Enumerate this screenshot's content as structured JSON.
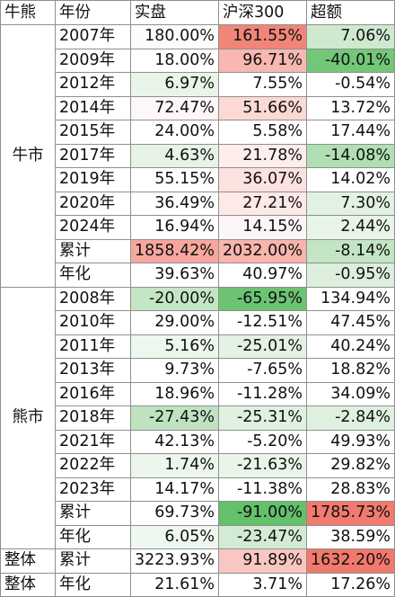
{
  "headers": [
    "牛熊",
    "年份",
    "实盘",
    "沪深300",
    "超额"
  ],
  "groups": [
    {
      "name": "牛市",
      "rows": [
        {
          "year": "2007年",
          "shipan": "180.00%",
          "hs300": "161.55%",
          "excess": "7.06%",
          "colors": [
            "#fbfdfb",
            "#f08578",
            "#cfe9cf"
          ]
        },
        {
          "year": "2009年",
          "shipan": "18.00%",
          "hs300": "96.71%",
          "excess": "-40.01%",
          "colors": [
            "#ffffff",
            "#f8b7b0",
            "#72c778"
          ]
        },
        {
          "year": "2012年",
          "shipan": "6.97%",
          "hs300": "7.55%",
          "excess": "-0.54%",
          "colors": [
            "#eaf5ea",
            "#ffffff",
            "#ffffff"
          ]
        },
        {
          "year": "2014年",
          "shipan": "72.47%",
          "hs300": "51.66%",
          "excess": "13.72%",
          "colors": [
            "#fdf7f7",
            "#fcd9d5",
            "#ffffff"
          ]
        },
        {
          "year": "2015年",
          "shipan": "24.00%",
          "hs300": "5.58%",
          "excess": "17.44%",
          "colors": [
            "#ffffff",
            "#ffffff",
            "#ffffff"
          ]
        },
        {
          "year": "2017年",
          "shipan": "4.63%",
          "hs300": "21.78%",
          "excess": "-14.08%",
          "colors": [
            "#e6f3e6",
            "#fdeeec",
            "#b1dfb3"
          ]
        },
        {
          "year": "2019年",
          "shipan": "55.15%",
          "hs300": "36.07%",
          "excess": "14.02%",
          "colors": [
            "#ffffff",
            "#fce1de",
            "#ffffff"
          ]
        },
        {
          "year": "2020年",
          "shipan": "36.49%",
          "hs300": "27.21%",
          "excess": "7.30%",
          "colors": [
            "#ffffff",
            "#fde9e7",
            "#e2f2e2"
          ]
        },
        {
          "year": "2024年",
          "shipan": "16.94%",
          "hs300": "14.15%",
          "excess": "2.44%",
          "colors": [
            "#ffffff",
            "#fdf6f6",
            "#e8f4e8"
          ]
        },
        {
          "year": "累计",
          "shipan": "1858.42%",
          "hs300": "2032.00%",
          "excess": "-8.14%",
          "colors": [
            "#f7a79e",
            "#f8b4ad",
            "#c3e5c4"
          ]
        },
        {
          "year": "年化",
          "shipan": "39.63%",
          "hs300": "40.97%",
          "excess": "-0.95%",
          "colors": [
            "#ffffff",
            "#ffffff",
            "#dcefdc"
          ]
        }
      ]
    },
    {
      "name": "熊市",
      "rows": [
        {
          "year": "2008年",
          "shipan": "-20.00%",
          "hs300": "-65.95%",
          "excess": "134.94%",
          "colors": [
            "#c4e6c5",
            "#6cc473",
            "#ffffff"
          ]
        },
        {
          "year": "2010年",
          "shipan": "29.00%",
          "hs300": "-12.51%",
          "excess": "47.45%",
          "colors": [
            "#ffffff",
            "#ffffff",
            "#ffffff"
          ]
        },
        {
          "year": "2011年",
          "shipan": "5.16%",
          "hs300": "-25.01%",
          "excess": "40.24%",
          "colors": [
            "#eef7ee",
            "#e3f2e3",
            "#ffffff"
          ]
        },
        {
          "year": "2013年",
          "shipan": "9.73%",
          "hs300": "-7.65%",
          "excess": "18.82%",
          "colors": [
            "#ffffff",
            "#ffffff",
            "#ffffff"
          ]
        },
        {
          "year": "2016年",
          "shipan": "18.96%",
          "hs300": "-11.28%",
          "excess": "34.09%",
          "colors": [
            "#ffffff",
            "#ffffff",
            "#ffffff"
          ]
        },
        {
          "year": "2018年",
          "shipan": "-27.43%",
          "hs300": "-25.31%",
          "excess": "-2.84%",
          "colors": [
            "#bfe3c0",
            "#e0f1e0",
            "#dff0df"
          ]
        },
        {
          "year": "2021年",
          "shipan": "42.13%",
          "hs300": "-5.20%",
          "excess": "49.93%",
          "colors": [
            "#ffffff",
            "#ffffff",
            "#ffffff"
          ]
        },
        {
          "year": "2022年",
          "shipan": "1.74%",
          "hs300": "-21.63%",
          "excess": "29.82%",
          "colors": [
            "#ecf6ec",
            "#e9f5e9",
            "#ffffff"
          ]
        },
        {
          "year": "2023年",
          "shipan": "14.17%",
          "hs300": "-11.38%",
          "excess": "28.83%",
          "colors": [
            "#ffffff",
            "#ffffff",
            "#ffffff"
          ]
        },
        {
          "year": "累计",
          "shipan": "69.73%",
          "hs300": "-91.00%",
          "excess": "1785.73%",
          "colors": [
            "#ffffff",
            "#63c06b",
            "#f27a6e"
          ]
        },
        {
          "year": "年化",
          "shipan": "6.05%",
          "hs300": "-23.47%",
          "excess": "38.59%",
          "colors": [
            "#eff8ef",
            "#d3ebd4",
            "#ffffff"
          ]
        }
      ]
    }
  ],
  "overall": [
    {
      "label": "整体",
      "year": "累计",
      "shipan": "3223.93%",
      "hs300": "91.89%",
      "excess": "1632.20%",
      "colors": [
        "#ffffff",
        "#f9c7c1",
        "#f2796d"
      ]
    },
    {
      "label": "整体",
      "year": "年化",
      "shipan": "21.61%",
      "hs300": "3.71%",
      "excess": "17.26%",
      "colors": [
        "#ffffff",
        "#ffffff",
        "#ffffff"
      ]
    }
  ]
}
